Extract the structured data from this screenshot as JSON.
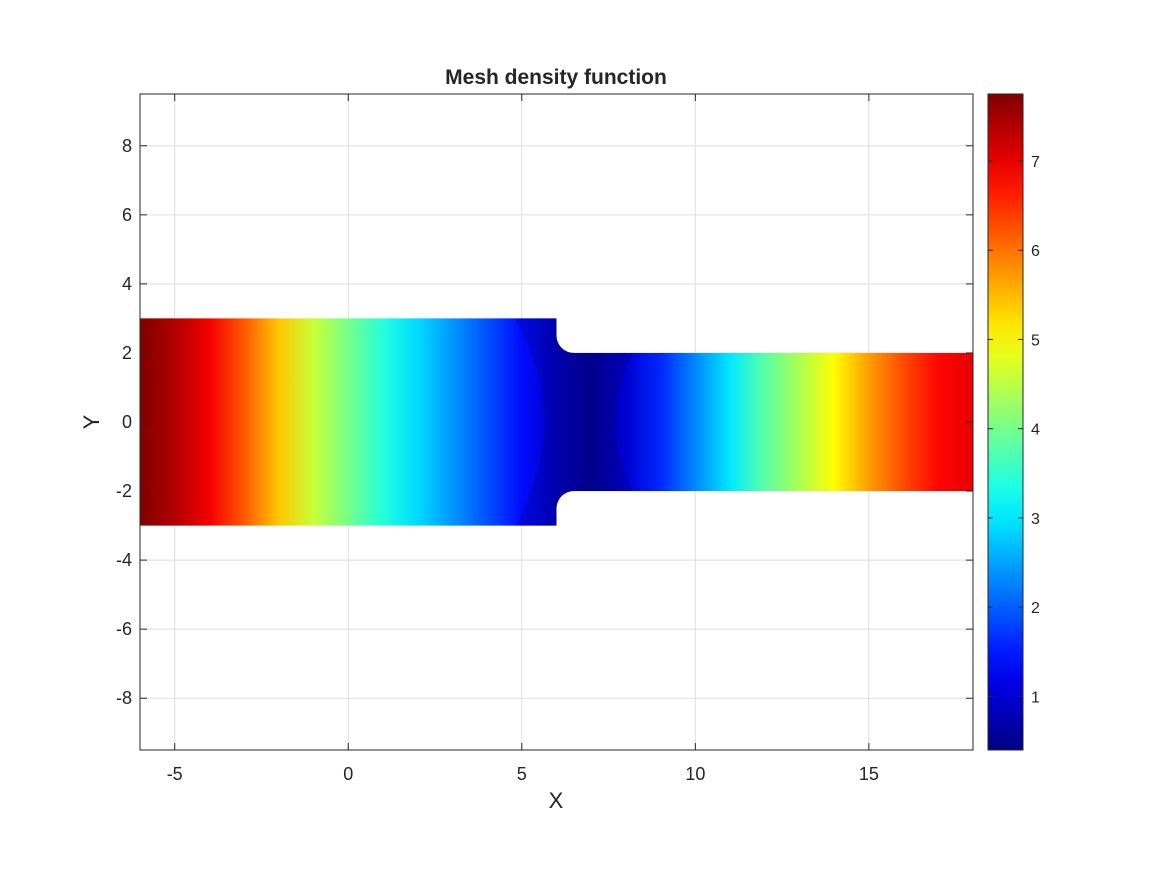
{
  "chart_data": {
    "type": "heatmap",
    "title": "Mesh density function",
    "xlabel": "X",
    "ylabel": "Y",
    "xlim": [
      -6,
      18
    ],
    "ylim": [
      -9.5,
      9.5
    ],
    "xticks": [
      -5,
      0,
      5,
      10,
      15
    ],
    "yticks": [
      -8,
      -6,
      -4,
      -2,
      0,
      2,
      4,
      6,
      8
    ],
    "grid": true,
    "colormap": "jet",
    "colorbar": {
      "location": "right",
      "limits": [
        0.4,
        7.75
      ],
      "ticks": [
        1,
        2,
        3,
        4,
        5,
        6,
        7
      ]
    },
    "domain_shape": {
      "left_block": {
        "x": [
          -6,
          6
        ],
        "y": [
          -3,
          3
        ]
      },
      "right_block": {
        "x": [
          6,
          18
        ],
        "y": [
          -2,
          2
        ]
      },
      "fillet_radius": 0.5
    },
    "value_profile_along_centerline": {
      "x": [
        -6,
        -5,
        -4,
        -3,
        -2,
        -1,
        0,
        1,
        2,
        3,
        4,
        5,
        6,
        7,
        8,
        9,
        10,
        11,
        12,
        13,
        14,
        15,
        16,
        17,
        18
      ],
      "density": [
        7.75,
        7.4,
        6.9,
        6.2,
        5.4,
        4.6,
        4.0,
        3.4,
        2.9,
        2.4,
        1.9,
        1.4,
        0.9,
        0.6,
        1.0,
        1.6,
        2.3,
        3.0,
        3.8,
        4.4,
        5.0,
        5.7,
        6.3,
        6.8,
        7.0
      ]
    }
  }
}
